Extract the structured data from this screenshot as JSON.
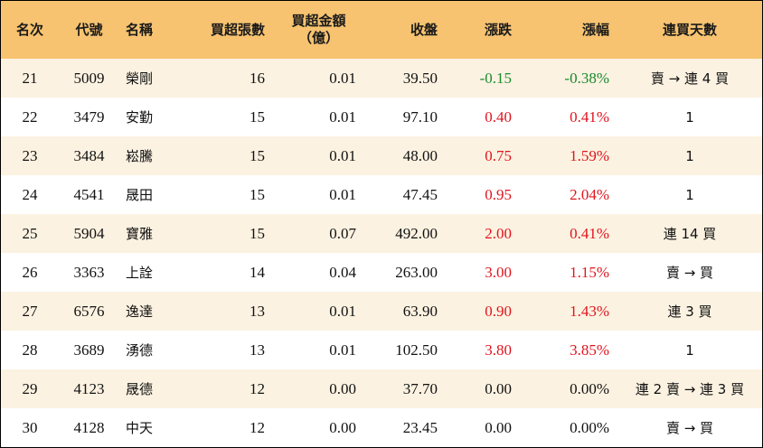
{
  "table": {
    "headers": {
      "rank": "名次",
      "code": "代號",
      "name": "名稱",
      "net_buy_lots": "買超張數",
      "net_buy_amount_line1": "買超金額",
      "net_buy_amount_line2": "（億）",
      "close": "收盤",
      "change": "漲跌",
      "change_pct": "漲幅",
      "consecutive_buy_days": "連買天數"
    },
    "rows": [
      {
        "rank": "21",
        "code": "5009",
        "name": "榮剛",
        "lots": "16",
        "amount": "0.01",
        "close": "39.50",
        "change": "-0.15",
        "pct": "-0.38%",
        "days": "賣 → 連 4 買",
        "trend": "down"
      },
      {
        "rank": "22",
        "code": "3479",
        "name": "安勤",
        "lots": "15",
        "amount": "0.01",
        "close": "97.10",
        "change": "0.40",
        "pct": "0.41%",
        "days": "1",
        "trend": "up"
      },
      {
        "rank": "23",
        "code": "3484",
        "name": "崧騰",
        "lots": "15",
        "amount": "0.01",
        "close": "48.00",
        "change": "0.75",
        "pct": "1.59%",
        "days": "1",
        "trend": "up"
      },
      {
        "rank": "24",
        "code": "4541",
        "name": "晟田",
        "lots": "15",
        "amount": "0.01",
        "close": "47.45",
        "change": "0.95",
        "pct": "2.04%",
        "days": "1",
        "trend": "up"
      },
      {
        "rank": "25",
        "code": "5904",
        "name": "寶雅",
        "lots": "15",
        "amount": "0.07",
        "close": "492.00",
        "change": "2.00",
        "pct": "0.41%",
        "days": "連 14 買",
        "trend": "up"
      },
      {
        "rank": "26",
        "code": "3363",
        "name": "上詮",
        "lots": "14",
        "amount": "0.04",
        "close": "263.00",
        "change": "3.00",
        "pct": "1.15%",
        "days": "賣 → 買",
        "trend": "up"
      },
      {
        "rank": "27",
        "code": "6576",
        "name": "逸達",
        "lots": "13",
        "amount": "0.01",
        "close": "63.90",
        "change": "0.90",
        "pct": "1.43%",
        "days": "連 3 買",
        "trend": "up"
      },
      {
        "rank": "28",
        "code": "3689",
        "name": "湧德",
        "lots": "13",
        "amount": "0.01",
        "close": "102.50",
        "change": "3.80",
        "pct": "3.85%",
        "days": "1",
        "trend": "up"
      },
      {
        "rank": "29",
        "code": "4123",
        "name": "晟德",
        "lots": "12",
        "amount": "0.00",
        "close": "37.70",
        "change": "0.00",
        "pct": "0.00%",
        "days": "連 2 賣 → 連 3 買",
        "trend": "flat"
      },
      {
        "rank": "30",
        "code": "4128",
        "name": "中天",
        "lots": "12",
        "amount": "0.00",
        "close": "23.45",
        "change": "0.00",
        "pct": "0.00%",
        "days": "賣 → 買",
        "trend": "flat"
      }
    ],
    "colors": {
      "header_bg": "#f7c370",
      "row_alt_bg": "#fcf2e1",
      "up": "#e0141e",
      "down": "#188a2e",
      "flat": "#111111"
    }
  }
}
